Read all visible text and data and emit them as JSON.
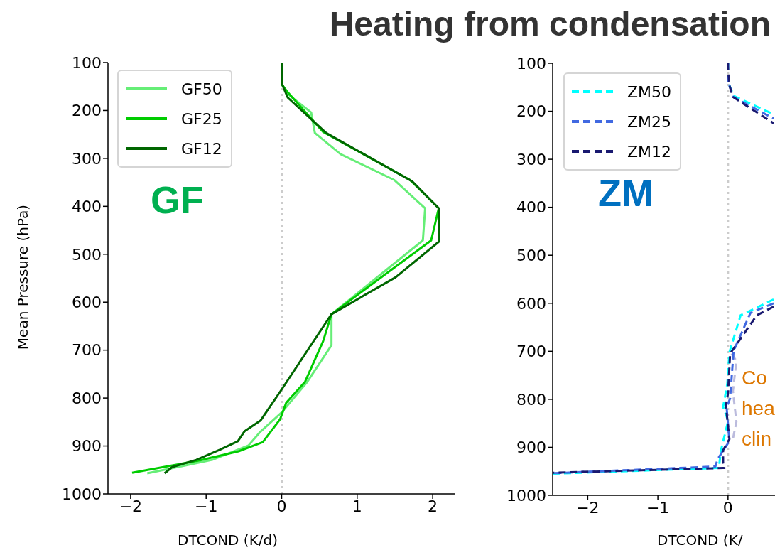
{
  "chart_data": [
    {
      "type": "line",
      "title": "Heating from condensation",
      "xlabel": "DTCOND (K/d)",
      "ylabel": "Mean Pressure (hPa)",
      "xlim": [
        -2.3,
        2.3
      ],
      "xticks": [
        -2,
        -1,
        0,
        1,
        2
      ],
      "ylim": [
        1000,
        100
      ],
      "yticks": [
        100,
        200,
        300,
        400,
        500,
        600,
        700,
        800,
        900,
        1000
      ],
      "legend": "top left",
      "line_style": "solid",
      "annotations": [
        "GF"
      ],
      "ref_lines": [
        {
          "axis": "x",
          "value": 0,
          "color": "#cccccc",
          "line_style": "dotted"
        }
      ],
      "series": [
        {
          "name": "GF50",
          "color": "#66ee77",
          "x": [
            0,
            0,
            0.09,
            0.39,
            0.44,
            0.78,
            1.49,
            1.9,
            1.87,
            0.66,
            0.66,
            0.34,
            0,
            -0.28,
            -0.44,
            -0.92,
            -1.78
          ],
          "values": [
            100,
            145,
            167,
            204,
            247,
            291,
            345,
            404,
            471,
            625,
            690,
            766,
            830,
            870,
            899,
            929,
            957
          ]
        },
        {
          "name": "GF25",
          "color": "#00cc00",
          "x": [
            0,
            0,
            0.07,
            0.55,
            1.7,
            2.08,
            1.98,
            0.66,
            0.55,
            0.31,
            0.06,
            -0.02,
            -0.25,
            -0.57,
            -1.08,
            -1.98
          ],
          "values": [
            100,
            145,
            160,
            245,
            345,
            404,
            471,
            625,
            681,
            766,
            810,
            844,
            892,
            911,
            930,
            956
          ]
        },
        {
          "name": "GF12",
          "color": "#006600",
          "x": [
            0,
            0,
            0.08,
            0.59,
            1.73,
            2.08,
            2.08,
            1.51,
            0.66,
            0.5,
            0,
            -0.28,
            -0.49,
            -0.58,
            -0.82,
            -1.13,
            -1.45,
            -1.55
          ],
          "values": [
            100,
            143,
            173,
            247,
            348,
            404,
            474,
            548,
            625,
            663,
            782,
            847,
            869,
            890,
            908,
            929,
            944,
            957
          ]
        }
      ]
    },
    {
      "type": "line",
      "xlabel": "DTCOND (K/",
      "xlim": [
        -2.5,
        0.67
      ],
      "xticks": [
        -2,
        -1,
        0
      ],
      "ylim": [
        1000,
        100
      ],
      "yticks": [
        100,
        200,
        300,
        400,
        500,
        600,
        700,
        800,
        900,
        1000
      ],
      "legend": "top left",
      "line_style": "dashed",
      "annotations": [
        "ZM",
        "Co",
        "hea",
        "clin"
      ],
      "ref_lines": [
        {
          "axis": "x",
          "value": 0,
          "color": "#cccccc",
          "line_style": "dotted"
        }
      ],
      "series": [
        {
          "color": "#bbbbdd",
          "x": [
            0.05,
            0.12,
            0.07,
            0.12,
            0.07
          ],
          "values": [
            705,
            720,
            783,
            847,
            882
          ]
        },
        {
          "name": "ZM50",
          "color": "#00ffff",
          "x": [
            0,
            0,
            0.02,
            0.08,
            0.63,
            null,
            0.65,
            0.18,
            0.02,
            -0.01,
            -0.07,
            -0.03,
            0,
            -0.1,
            -0.13,
            -2.5
          ],
          "values": [
            100,
            145,
            146,
            168,
            205,
            null,
            592,
            625,
            702,
            768,
            816,
            831,
            846,
            906,
            943,
            955
          ]
        },
        {
          "name": "ZM25",
          "color": "#4169e1",
          "x": [
            0,
            0,
            0.02,
            0.07,
            0.65,
            null,
            0.65,
            0.32,
            0.08,
            0.03,
            -0.02,
            0.02,
            -0.15,
            -0.18,
            -2.5
          ],
          "values": [
            100,
            145,
            146,
            170,
            215,
            null,
            600,
            620,
            699,
            798,
            817,
            887,
            925,
            940,
            954
          ]
        },
        {
          "name": "ZM12",
          "color": "#191970",
          "x": [
            0,
            0,
            0.02,
            0.07,
            0.65,
            null,
            0.65,
            0.41,
            0.03,
            0,
            -0.03,
            0.02,
            -0.07,
            -0.07,
            -0.05,
            -2.5
          ],
          "values": [
            100,
            110,
            146,
            170,
            225,
            null,
            607,
            625,
            705,
            788,
            813,
            883,
            906,
            931,
            943,
            953
          ]
        }
      ]
    }
  ]
}
